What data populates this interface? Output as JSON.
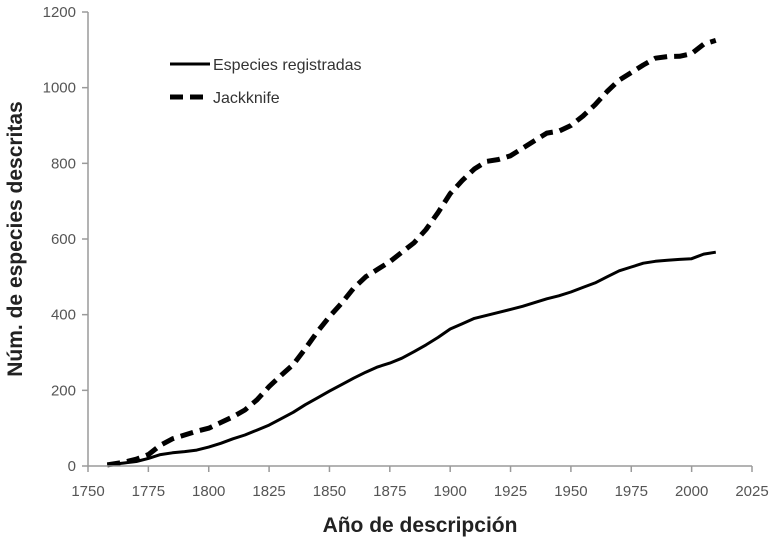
{
  "chart_data": {
    "type": "line",
    "title": "",
    "xlabel": "Año de descripción",
    "ylabel": "Núm. de especies descritas",
    "xlim": [
      1750,
      2025
    ],
    "ylim": [
      0,
      1200
    ],
    "x_ticks": [
      "1750",
      "1775",
      "1800",
      "1825",
      "1850",
      "1875",
      "1900",
      "1925",
      "1950",
      "1975",
      "2000",
      "2025"
    ],
    "y_ticks": [
      "0",
      "200",
      "400",
      "600",
      "800",
      "1000",
      "1200"
    ],
    "grid": false,
    "legend_position": "top-left",
    "series": [
      {
        "name": "Especies registradas",
        "style": "solid",
        "color": "#000000",
        "points": [
          [
            1758,
            3
          ],
          [
            1765,
            8
          ],
          [
            1770,
            12
          ],
          [
            1775,
            20
          ],
          [
            1780,
            30
          ],
          [
            1785,
            35
          ],
          [
            1790,
            38
          ],
          [
            1795,
            42
          ],
          [
            1800,
            50
          ],
          [
            1805,
            60
          ],
          [
            1810,
            72
          ],
          [
            1815,
            82
          ],
          [
            1820,
            95
          ],
          [
            1825,
            108
          ],
          [
            1830,
            125
          ],
          [
            1835,
            142
          ],
          [
            1840,
            162
          ],
          [
            1845,
            180
          ],
          [
            1850,
            198
          ],
          [
            1855,
            215
          ],
          [
            1860,
            232
          ],
          [
            1865,
            248
          ],
          [
            1870,
            262
          ],
          [
            1875,
            272
          ],
          [
            1880,
            285
          ],
          [
            1885,
            302
          ],
          [
            1890,
            320
          ],
          [
            1895,
            340
          ],
          [
            1900,
            362
          ],
          [
            1905,
            376
          ],
          [
            1910,
            390
          ],
          [
            1915,
            398
          ],
          [
            1920,
            406
          ],
          [
            1925,
            414
          ],
          [
            1930,
            422
          ],
          [
            1935,
            432
          ],
          [
            1940,
            442
          ],
          [
            1945,
            450
          ],
          [
            1950,
            460
          ],
          [
            1955,
            472
          ],
          [
            1960,
            484
          ],
          [
            1965,
            500
          ],
          [
            1970,
            516
          ],
          [
            1975,
            526
          ],
          [
            1980,
            536
          ],
          [
            1985,
            541
          ],
          [
            1990,
            544
          ],
          [
            1995,
            546
          ],
          [
            2000,
            548
          ],
          [
            2005,
            560
          ],
          [
            2010,
            565
          ]
        ]
      },
      {
        "name": "Jackknife",
        "style": "dashed",
        "color": "#000000",
        "points": [
          [
            1758,
            3
          ],
          [
            1765,
            10
          ],
          [
            1770,
            18
          ],
          [
            1775,
            30
          ],
          [
            1780,
            55
          ],
          [
            1785,
            72
          ],
          [
            1790,
            82
          ],
          [
            1795,
            92
          ],
          [
            1800,
            100
          ],
          [
            1805,
            115
          ],
          [
            1810,
            130
          ],
          [
            1815,
            148
          ],
          [
            1820,
            175
          ],
          [
            1825,
            210
          ],
          [
            1830,
            240
          ],
          [
            1835,
            268
          ],
          [
            1840,
            310
          ],
          [
            1845,
            355
          ],
          [
            1850,
            395
          ],
          [
            1855,
            430
          ],
          [
            1860,
            470
          ],
          [
            1865,
            500
          ],
          [
            1870,
            520
          ],
          [
            1875,
            540
          ],
          [
            1880,
            565
          ],
          [
            1885,
            590
          ],
          [
            1890,
            625
          ],
          [
            1895,
            670
          ],
          [
            1900,
            720
          ],
          [
            1905,
            755
          ],
          [
            1910,
            785
          ],
          [
            1915,
            805
          ],
          [
            1920,
            810
          ],
          [
            1925,
            820
          ],
          [
            1930,
            840
          ],
          [
            1935,
            860
          ],
          [
            1940,
            880
          ],
          [
            1945,
            885
          ],
          [
            1950,
            900
          ],
          [
            1955,
            925
          ],
          [
            1960,
            955
          ],
          [
            1965,
            990
          ],
          [
            1970,
            1020
          ],
          [
            1975,
            1040
          ],
          [
            1980,
            1060
          ],
          [
            1985,
            1078
          ],
          [
            1990,
            1082
          ],
          [
            1995,
            1083
          ],
          [
            2000,
            1090
          ],
          [
            2005,
            1115
          ],
          [
            2010,
            1125
          ]
        ]
      }
    ]
  }
}
